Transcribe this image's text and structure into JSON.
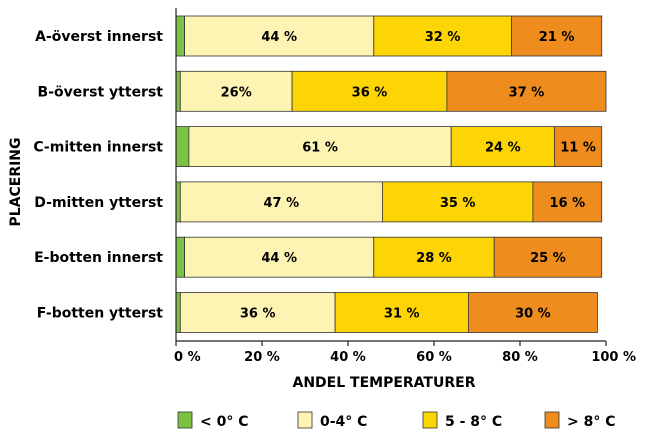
{
  "chart_data": {
    "type": "bar",
    "orientation": "horizontal",
    "stacked": true,
    "categories": [
      "A-överst innerst",
      "B-överst ytterst",
      "C-mitten innerst",
      "D-mitten ytterst",
      "E-botten innerst",
      "F-botten ytterst"
    ],
    "series": [
      {
        "name": "< 0° C",
        "color": "#7dc142",
        "values": [
          2,
          1,
          3,
          1,
          2,
          1
        ],
        "labels": [
          "",
          "",
          "",
          "",
          "",
          ""
        ]
      },
      {
        "name": "0-4° C",
        "color": "#fdf4b4",
        "values": [
          44,
          26,
          61,
          47,
          44,
          36
        ],
        "labels": [
          "44 %",
          "26%",
          "61 %",
          "47 %",
          "44 %",
          "36 %"
        ]
      },
      {
        "name": "5 - 8° C",
        "color": "#fdd404",
        "values": [
          32,
          36,
          24,
          35,
          28,
          31
        ],
        "labels": [
          "32 %",
          "36 %",
          "24 %",
          "35 %",
          "28 %",
          "31 %"
        ]
      },
      {
        "name": "> 8° C",
        "color": "#ee8c1e",
        "values": [
          21,
          37,
          11,
          16,
          25,
          30
        ],
        "labels": [
          "21 %",
          "37 %",
          "11 %",
          "16 %",
          "25 %",
          "30 %"
        ]
      }
    ],
    "xlabel": "ANDEL TEMPERATURER",
    "ylabel": "PLACERING",
    "xlim": [
      0,
      100
    ],
    "xticks": [
      0,
      20,
      40,
      60,
      80,
      100
    ],
    "xtick_labels": [
      "0 %",
      "20 %",
      "40 %",
      "60 %",
      "80 %",
      "100 %"
    ],
    "grid": false,
    "legend": "bottom"
  }
}
